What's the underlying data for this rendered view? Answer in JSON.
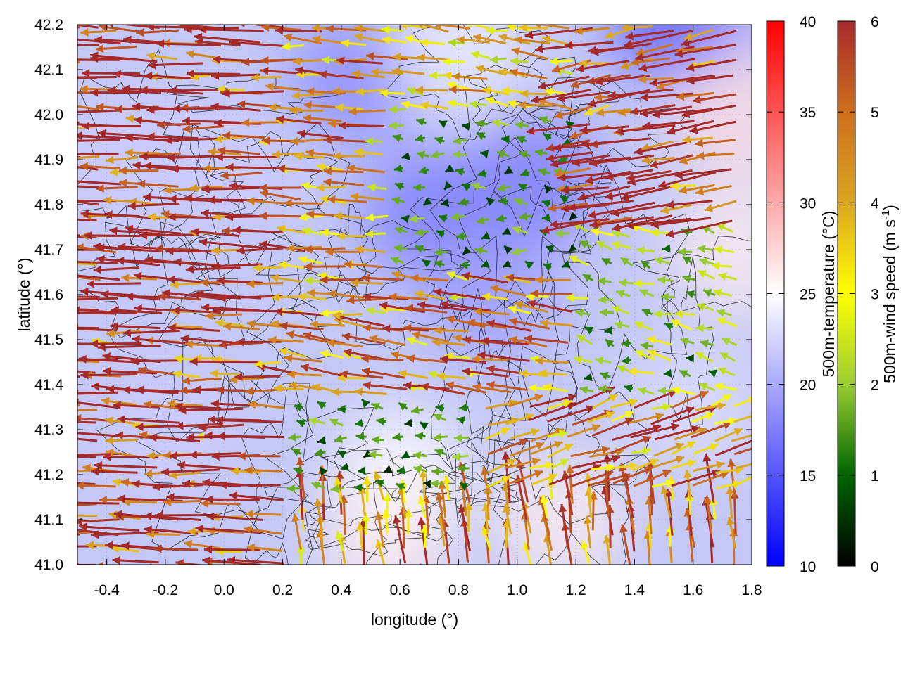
{
  "chart_data": {
    "type": "heatmap",
    "xlabel": "longitude (°)",
    "ylabel": "latitude (°)",
    "xlim": [
      -0.5,
      1.8
    ],
    "ylim": [
      41.0,
      42.2
    ],
    "x_ticks": [
      "-0.4",
      "-0.2",
      "0.0",
      "0.2",
      "0.4",
      "0.6",
      "0.8",
      "1.0",
      "1.2",
      "1.4",
      "1.6",
      "1.8"
    ],
    "x_tick_values": [
      -0.4,
      -0.2,
      0.0,
      0.2,
      0.4,
      0.6,
      0.8,
      1.0,
      1.2,
      1.4,
      1.6,
      1.8
    ],
    "y_ticks": [
      "41.0",
      "41.1",
      "41.2",
      "41.3",
      "41.4",
      "41.5",
      "41.6",
      "41.7",
      "41.8",
      "41.9",
      "42.0",
      "42.1",
      "42.2"
    ],
    "y_tick_values": [
      41.0,
      41.1,
      41.2,
      41.3,
      41.4,
      41.5,
      41.6,
      41.7,
      41.8,
      41.9,
      42.0,
      42.1,
      42.2
    ],
    "grid": true,
    "temperature_colorbar": {
      "label": "500m-temperature (°C)",
      "range": [
        10,
        40
      ],
      "ticks": [
        "10",
        "15",
        "20",
        "25",
        "30",
        "35",
        "40"
      ],
      "tick_values": [
        10,
        15,
        20,
        25,
        30,
        35,
        40
      ],
      "colors": [
        "#0000ff",
        "#ffffff",
        "#ff0000"
      ]
    },
    "wind_colorbar": {
      "label_main": "500m-wind speed (m s",
      "label_sup": "-1",
      "label_end": ")",
      "range": [
        0,
        6
      ],
      "ticks": [
        "0",
        "1",
        "2",
        "3",
        "4",
        "5",
        "6"
      ],
      "tick_values": [
        0,
        1,
        2,
        3,
        4,
        5,
        6
      ],
      "colors": [
        "#000000",
        "#006400",
        "#9acd32",
        "#ffff00",
        "#daa520",
        "#cd6f1e",
        "#a52a2a"
      ]
    },
    "temperature_field": [
      {
        "lon": -0.4,
        "lat": 41.9,
        "t": 22
      },
      {
        "lon": 0.0,
        "lat": 41.9,
        "t": 22
      },
      {
        "lon": 0.45,
        "lat": 42.08,
        "t": 18
      },
      {
        "lon": 0.7,
        "lat": 41.78,
        "t": 17
      },
      {
        "lon": 0.9,
        "lat": 41.6,
        "t": 19
      },
      {
        "lon": 1.05,
        "lat": 41.85,
        "t": 17
      },
      {
        "lon": 1.55,
        "lat": 42.2,
        "t": 15
      },
      {
        "lon": 1.75,
        "lat": 42.0,
        "t": 27
      },
      {
        "lon": 1.75,
        "lat": 41.7,
        "t": 26
      },
      {
        "lon": 0.6,
        "lat": 41.2,
        "t": 25
      },
      {
        "lon": 0.55,
        "lat": 41.05,
        "t": 26
      },
      {
        "lon": 1.15,
        "lat": 41.1,
        "t": 26
      },
      {
        "lon": 0.8,
        "lat": 42.15,
        "t": 24
      },
      {
        "lon": -0.2,
        "lat": 41.3,
        "t": 22
      },
      {
        "lon": 1.6,
        "lat": 41.35,
        "t": 23
      }
    ],
    "wind_regions": [
      {
        "lon_range": [
          -0.5,
          0.25
        ],
        "lat_range": [
          41.0,
          42.2
        ],
        "u": -6.2,
        "v": 0.2,
        "speed": 6.2
      },
      {
        "lon_range": [
          0.25,
          0.6
        ],
        "lat_range": [
          41.55,
          42.2
        ],
        "u": -4.2,
        "v": 0.3,
        "speed": 4.2
      },
      {
        "lon_range": [
          0.6,
          1.2
        ],
        "lat_range": [
          41.65,
          42.0
        ],
        "u": -1.2,
        "v": 0.1,
        "speed": 1.2
      },
      {
        "lon_range": [
          0.6,
          1.2
        ],
        "lat_range": [
          42.0,
          42.2
        ],
        "u": -3.5,
        "v": 0.5,
        "speed": 3.6
      },
      {
        "lon_range": [
          1.2,
          1.8
        ],
        "lat_range": [
          41.75,
          42.2
        ],
        "u": -6.0,
        "v": -1.0,
        "speed": 6.1
      },
      {
        "lon_range": [
          1.2,
          1.8
        ],
        "lat_range": [
          41.35,
          41.75
        ],
        "u": -2.0,
        "v": 0.5,
        "speed": 2.1
      },
      {
        "lon_range": [
          0.25,
          1.2
        ],
        "lat_range": [
          41.35,
          41.65
        ],
        "u": -4.5,
        "v": 0.6,
        "speed": 4.5
      },
      {
        "lon_range": [
          0.25,
          0.9
        ],
        "lat_range": [
          41.15,
          41.35
        ],
        "u": -1.3,
        "v": 0.2,
        "speed": 1.3
      },
      {
        "lon_range": [
          0.9,
          1.8
        ],
        "lat_range": [
          41.15,
          41.35
        ],
        "u": 4.5,
        "v": 1.5,
        "speed": 4.7
      },
      {
        "lon_range": [
          0.25,
          1.8
        ],
        "lat_range": [
          41.0,
          41.15
        ],
        "u": -0.5,
        "v": 4.5,
        "speed": 4.5
      }
    ]
  }
}
